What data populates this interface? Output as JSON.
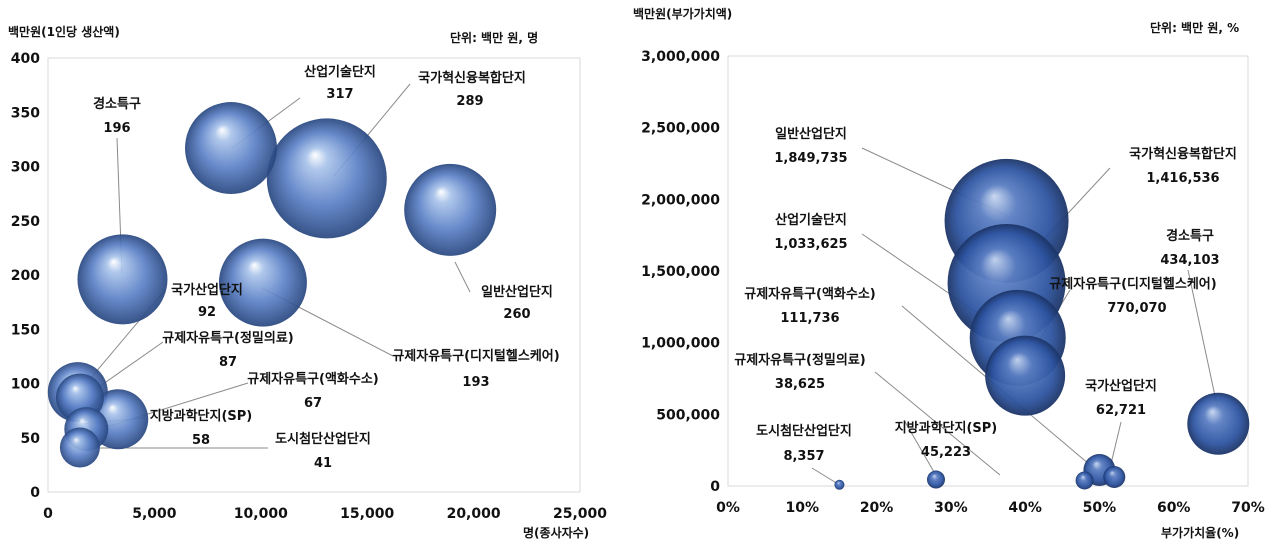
{
  "chart_data": [
    {
      "type": "scatter",
      "ylabel": "백만원(1인당 생산액)",
      "xlabel": "명(종사자수)",
      "unit_note": "단위: 백만 원, 명",
      "xlim": [
        0,
        25000
      ],
      "ylim": [
        0,
        400
      ],
      "x_ticks": [
        "0",
        "5,000",
        "10,000",
        "15,000",
        "20,000",
        "25,000"
      ],
      "y_ticks": [
        "0",
        "50",
        "100",
        "150",
        "200",
        "250",
        "300",
        "350",
        "400"
      ],
      "points": [
        {
          "label": "산업기술단지",
          "value_label": "317",
          "x": 8600,
          "y": 317
        },
        {
          "label": "국가혁신융복합단지",
          "value_label": "289",
          "x": 13100,
          "y": 289
        },
        {
          "label": "경소특구",
          "value_label": "196",
          "x": 3500,
          "y": 196
        },
        {
          "label": "일반산업단지",
          "value_label": "260",
          "x": 18900,
          "y": 260
        },
        {
          "label": "규제자유특구(디지털헬스케어)",
          "value_label": "193",
          "x": 10100,
          "y": 193
        },
        {
          "label": "국가산업단지",
          "value_label": "92",
          "x": 1400,
          "y": 92
        },
        {
          "label": "규제자유특구(정밀의료)",
          "value_label": "87",
          "x": 1500,
          "y": 87
        },
        {
          "label": "규제자유특구(액화수소)",
          "value_label": "67",
          "x": 3300,
          "y": 67
        },
        {
          "label": "지방과학단지(SP)",
          "value_label": "58",
          "x": 1800,
          "y": 58
        },
        {
          "label": "도시첨단산업단지",
          "value_label": "41",
          "x": 1500,
          "y": 41
        }
      ]
    },
    {
      "type": "scatter",
      "ylabel": "백만원(부가가치액)",
      "xlabel": "부가가치율(%)",
      "unit_note": "단위: 백만 원, %",
      "xlim": [
        0,
        70
      ],
      "ylim": [
        0,
        3000000
      ],
      "x_ticks": [
        "0%",
        "10%",
        "20%",
        "30%",
        "40%",
        "50%",
        "60%",
        "70%"
      ],
      "y_ticks": [
        "0",
        "500,000",
        "1,000,000",
        "1,500,000",
        "2,000,000",
        "2,500,000",
        "3,000,000"
      ],
      "points": [
        {
          "label": "일반산업단지",
          "value_label": "1,849,735",
          "x": 37.5,
          "y": 1849735
        },
        {
          "label": "국가혁신융복합단지",
          "value_label": "1,416,536",
          "x": 37.5,
          "y": 1416536
        },
        {
          "label": "산업기술단지",
          "value_label": "1,033,625",
          "x": 39,
          "y": 1033625
        },
        {
          "label": "규제자유특구(디지털헬스케어)",
          "value_label": "770,070",
          "x": 40,
          "y": 770070
        },
        {
          "label": "경소특구",
          "value_label": "434,103",
          "x": 66,
          "y": 434103
        },
        {
          "label": "규제자유특구(액화수소)",
          "value_label": "111,736",
          "x": 50,
          "y": 111736
        },
        {
          "label": "국가산업단지",
          "value_label": "62,721",
          "x": 52,
          "y": 62721
        },
        {
          "label": "지방과학단지(SP)",
          "value_label": "45,223",
          "x": 28,
          "y": 45223
        },
        {
          "label": "규제자유특구(정밀의료)",
          "value_label": "38,625",
          "x": 48,
          "y": 38625
        },
        {
          "label": "도시첨단산업단지",
          "value_label": "8,357",
          "x": 15,
          "y": 8357
        }
      ]
    }
  ]
}
